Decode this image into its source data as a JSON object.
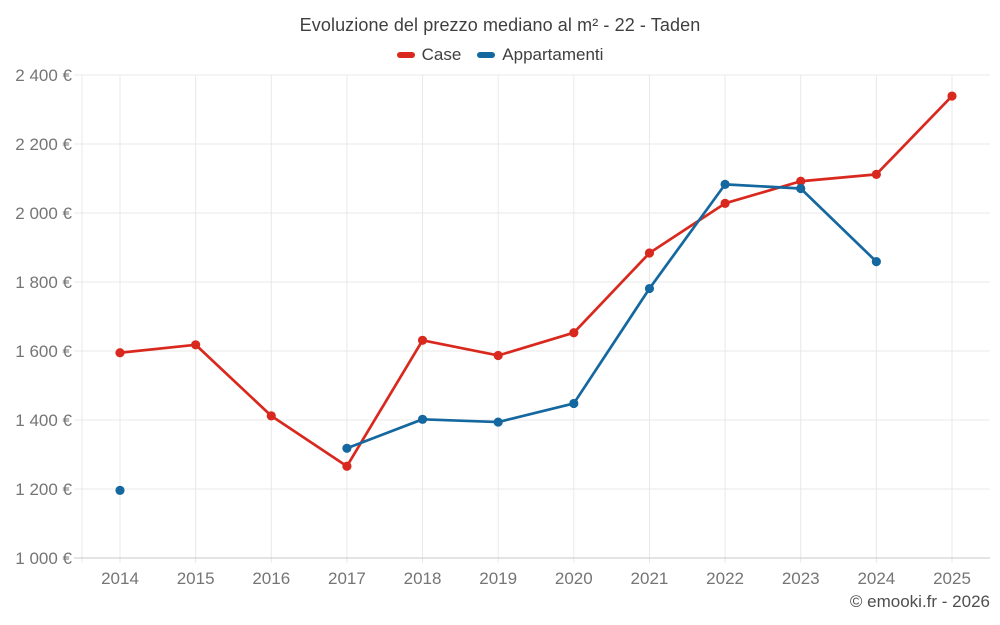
{
  "header": {
    "title": "Evoluzione del prezzo mediano al m² - 22 - Taden"
  },
  "legend": [
    {
      "label": "Case",
      "color": "#d9291e"
    },
    {
      "label": "Appartamenti",
      "color": "#15689f"
    }
  ],
  "footer": {
    "attribution": "© emooki.fr - 2026"
  },
  "colors": {
    "case_series": "#d9291e",
    "appartamenti_series": "#15689f",
    "gridline": "#e8e8e8",
    "axis_line": "#c9c9c9",
    "tick_label": "#757575"
  },
  "chart_data": {
    "type": "line",
    "title": "Evoluzione del prezzo mediano al m² - 22 - Taden",
    "xlabel": "",
    "ylabel": "",
    "categories": [
      "2014",
      "2015",
      "2016",
      "2017",
      "2018",
      "2019",
      "2020",
      "2021",
      "2022",
      "2023",
      "2024",
      "2025"
    ],
    "series": [
      {
        "name": "Case",
        "color": "#d9291e",
        "values": [
          1595,
          1618,
          1412,
          1266,
          1631,
          1587,
          1653,
          1884,
          2028,
          2092,
          2112,
          2339
        ]
      },
      {
        "name": "Appartamenti",
        "color": "#15689f",
        "values": [
          1196,
          null,
          null,
          1318,
          1402,
          1394,
          1448,
          1781,
          2083,
          2071,
          1859,
          null
        ]
      }
    ],
    "ylim": [
      1000,
      2400
    ],
    "yticks": [
      1000,
      1200,
      1400,
      1600,
      1800,
      2000,
      2200,
      2400
    ],
    "ytick_labels": [
      "1 000 €",
      "1 200 €",
      "1 400 €",
      "1 600 €",
      "1 800 €",
      "2 000 €",
      "2 200 €",
      "2 400 €"
    ],
    "grid": true,
    "legend_position": "top"
  }
}
